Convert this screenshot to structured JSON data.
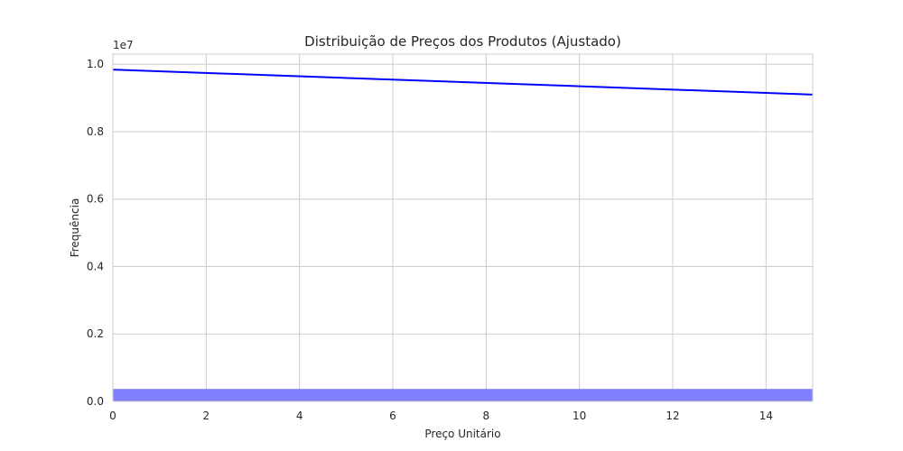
{
  "chart_data": {
    "type": "line",
    "title": "Distribuição de Preços dos Produtos (Ajustado)",
    "xlabel": "Preço Unitário",
    "ylabel": "Frequência",
    "y_offset_label": "1e7",
    "xlim": [
      0,
      15
    ],
    "ylim": [
      0,
      1.03
    ],
    "x_ticks": [
      0,
      2,
      4,
      6,
      8,
      10,
      12,
      14
    ],
    "y_ticks": [
      0.0,
      0.2,
      0.4,
      0.6,
      0.8,
      1.0
    ],
    "x_tick_labels": [
      "0",
      "2",
      "4",
      "6",
      "8",
      "10",
      "12",
      "14"
    ],
    "y_tick_labels": [
      "0.0",
      "0.2",
      "0.4",
      "0.6",
      "0.8",
      "1.0"
    ],
    "grid": true,
    "series": [
      {
        "kind": "line",
        "color": "#0000ff",
        "x": [
          0,
          15
        ],
        "y": [
          0.984,
          0.91
        ]
      },
      {
        "kind": "bar",
        "color": "#8080ff",
        "x_start": 0,
        "x_end": 15,
        "value": 0.037
      }
    ]
  }
}
